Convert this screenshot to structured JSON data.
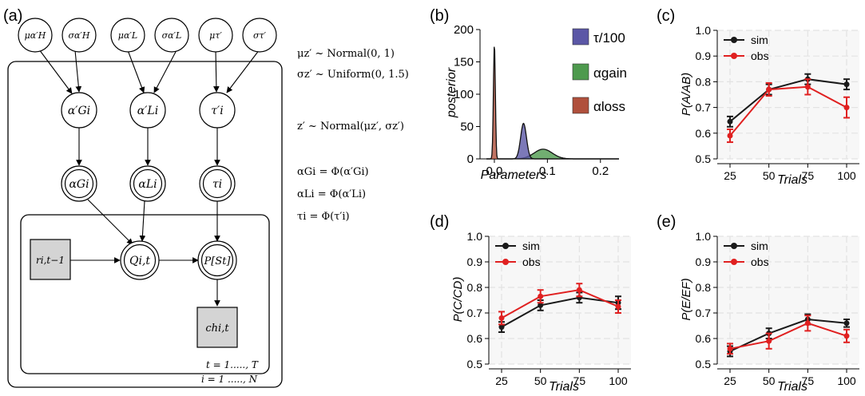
{
  "panel_labels": {
    "a": "(a)",
    "b": "(b)",
    "c": "(c)",
    "d": "(d)",
    "e": "(e)"
  },
  "graphical_model": {
    "hyper_nodes": [
      "μα′H",
      "σα′H",
      "μα′L",
      "σα′L",
      "μτ′",
      "στ′"
    ],
    "param_nodes": [
      "α′Gi",
      "α′Li",
      "τ′i"
    ],
    "transformed_nodes": [
      "αGi",
      "αLi",
      "τi"
    ],
    "reward_node": "ri,t−1",
    "q_node": "Qi,t",
    "p_node": "P[St]",
    "choice_node": "chi,t",
    "inner_plate_label": "t = 1....., T",
    "outer_plate_label": "i = 1 ....., N"
  },
  "equations": {
    "eq1": "μz′ ~ Normal(0, 1)",
    "eq2": "σz′ ~ Uniform(0, 1.5)",
    "eq3": "z′ ~ Normal(μz′, σz′)",
    "eq4": "αGi = Φ(α′Gi)",
    "eq5": "αLi = Φ(α′Li)",
    "eq6": "τi = Φ(τ′i)"
  },
  "chart_data": [
    {
      "id": "b",
      "type": "area",
      "xlabel": "Parameters",
      "ylabel": "posterior",
      "xlim": [
        -0.015,
        0.235
      ],
      "ylim": [
        0,
        200
      ],
      "xticks": [
        "0.0",
        "0.1",
        "0.2"
      ],
      "yticks": [
        "0",
        "50",
        "100",
        "150",
        "200"
      ],
      "legend_placement": "right",
      "series": [
        {
          "name": "τ/100",
          "color": "#5b57a6",
          "mean": 0.055,
          "sd": 0.0055,
          "peak": 55
        },
        {
          "name": "αgain",
          "color": "#4e9a4e",
          "mean": 0.092,
          "sd": 0.017,
          "peak": 15
        },
        {
          "name": "αloss",
          "color": "#b0503c",
          "mean": 0.0,
          "sd": 0.0018,
          "peak": 178
        }
      ]
    },
    {
      "id": "c",
      "type": "line",
      "ylabel": "P(A/AB)",
      "xlabel": "Trials",
      "x": [
        25,
        50,
        75,
        100
      ],
      "ylim": [
        0.5,
        1.0
      ],
      "yticks": [
        "0.5",
        "0.6",
        "0.7",
        "0.8",
        "0.9",
        "1.0"
      ],
      "xticks": [
        "25",
        "50",
        "75",
        "100"
      ],
      "legend_placement": "top-left",
      "series": [
        {
          "name": "sim",
          "color": "#1a1a1a",
          "values": [
            0.645,
            0.77,
            0.81,
            0.79
          ],
          "err": [
            0.02,
            0.02,
            0.02,
            0.02
          ]
        },
        {
          "name": "obs",
          "color": "#e02020",
          "values": [
            0.59,
            0.77,
            0.78,
            0.7
          ],
          "err": [
            0.025,
            0.025,
            0.03,
            0.04
          ]
        }
      ]
    },
    {
      "id": "d",
      "type": "line",
      "ylabel": "P(C/CD)",
      "xlabel": "Trials",
      "x": [
        25,
        50,
        75,
        100
      ],
      "ylim": [
        0.5,
        1.0
      ],
      "yticks": [
        "0.5",
        "0.6",
        "0.7",
        "0.8",
        "0.9",
        "1.0"
      ],
      "xticks": [
        "25",
        "50",
        "75",
        "100"
      ],
      "legend_placement": "top-left",
      "series": [
        {
          "name": "sim",
          "color": "#1a1a1a",
          "values": [
            0.645,
            0.73,
            0.76,
            0.74
          ],
          "err": [
            0.02,
            0.02,
            0.02,
            0.025
          ]
        },
        {
          "name": "obs",
          "color": "#e02020",
          "values": [
            0.68,
            0.765,
            0.79,
            0.725
          ],
          "err": [
            0.025,
            0.025,
            0.025,
            0.025
          ]
        }
      ]
    },
    {
      "id": "e",
      "type": "line",
      "ylabel": "P(E/EF)",
      "xlabel": "Trials",
      "x": [
        25,
        50,
        75,
        100
      ],
      "ylim": [
        0.5,
        1.0
      ],
      "yticks": [
        "0.5",
        "0.6",
        "0.7",
        "0.8",
        "0.9",
        "1.0"
      ],
      "xticks": [
        "25",
        "50",
        "75",
        "100"
      ],
      "legend_placement": "top-left",
      "series": [
        {
          "name": "sim",
          "color": "#1a1a1a",
          "values": [
            0.55,
            0.62,
            0.675,
            0.66
          ],
          "err": [
            0.02,
            0.02,
            0.02,
            0.015
          ]
        },
        {
          "name": "obs",
          "color": "#e02020",
          "values": [
            0.56,
            0.59,
            0.66,
            0.61
          ],
          "err": [
            0.02,
            0.03,
            0.03,
            0.025
          ]
        }
      ]
    }
  ]
}
